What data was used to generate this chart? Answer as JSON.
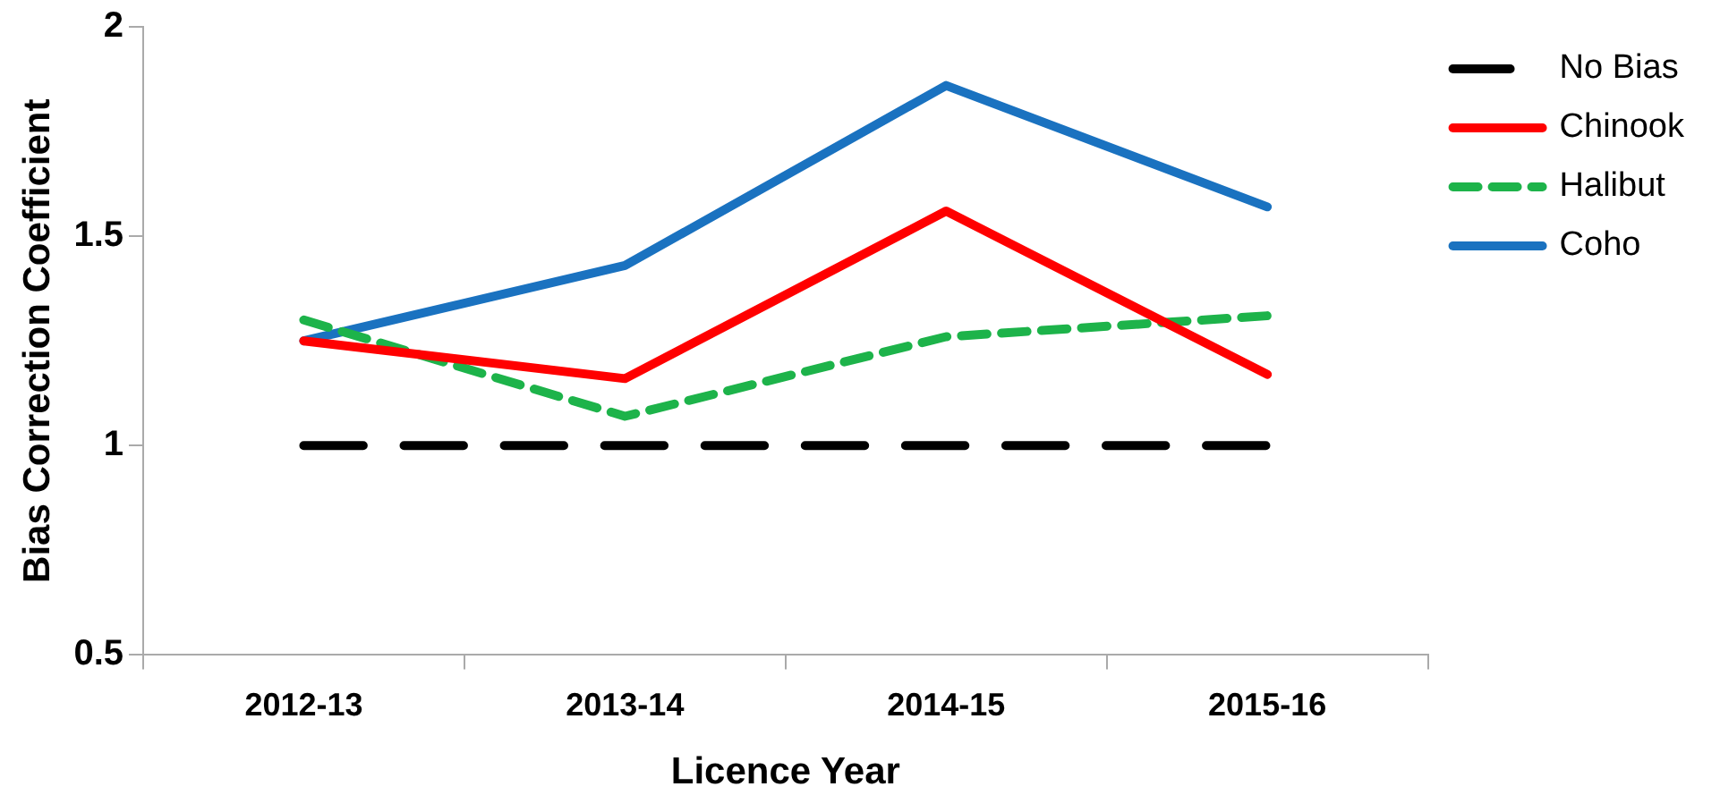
{
  "chart_data": {
    "type": "line",
    "xlabel": "Licence Year",
    "ylabel": "Bias Correction Coefficient",
    "categories": [
      "2012-13",
      "2013-14",
      "2014-15",
      "2015-16"
    ],
    "series": [
      {
        "name": "No Bias",
        "color": "#000000",
        "values": [
          1,
          1,
          1,
          1
        ],
        "line_style": "dashed"
      },
      {
        "name": "Chinook",
        "color": "#ff0000",
        "values": [
          1.25,
          1.16,
          1.56,
          1.17
        ],
        "line_style": "solid"
      },
      {
        "name": "Halibut",
        "color": "#1db34a",
        "values": [
          1.3,
          1.07,
          1.26,
          1.31
        ],
        "line_style": "dotted"
      },
      {
        "name": "Coho",
        "color": "#1a72c0",
        "values": [
          1.25,
          1.43,
          1.86,
          1.57
        ],
        "line_style": "solid"
      }
    ],
    "ylim": [
      0.5,
      2
    ],
    "yticks": [
      0.5,
      1,
      1.5,
      2
    ],
    "grid": false,
    "legend": "right",
    "marker": "none"
  }
}
